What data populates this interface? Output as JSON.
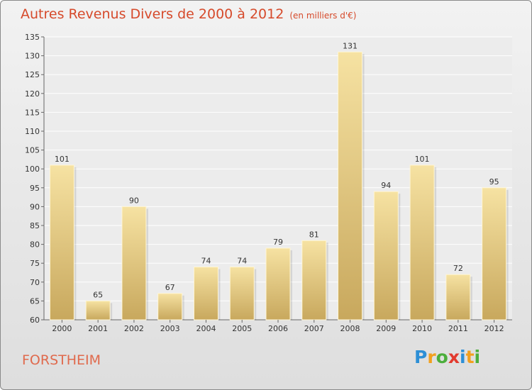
{
  "header": {
    "title": "Autres Revenus Divers de 2000 à 2012",
    "subtitle": "(en milliers d'€)"
  },
  "footer": {
    "commune": "FORSTHEIM",
    "logo_letters": [
      "P",
      "r",
      "o",
      "x",
      "i",
      "t",
      "i"
    ],
    "logo_colors": [
      "#2d8fd6",
      "#f2a01e",
      "#4cae3c",
      "#e23b2f",
      "#2d8fd6",
      "#f2a01e",
      "#4cae3c"
    ]
  },
  "colors": {
    "title": "#d64a2b",
    "bar": "#dcc37e",
    "bar_light": "#f4df9e",
    "bar_dark": "#c9a95e"
  },
  "chart_data": {
    "type": "bar",
    "categories": [
      "2000",
      "2001",
      "2002",
      "2003",
      "2004",
      "2005",
      "2006",
      "2007",
      "2008",
      "2009",
      "2010",
      "2011",
      "2012"
    ],
    "values": [
      101,
      65,
      90,
      67,
      74,
      74,
      79,
      81,
      131,
      94,
      101,
      72,
      95
    ],
    "ylim": [
      60,
      135
    ],
    "yticks": [
      60,
      65,
      70,
      75,
      80,
      85,
      90,
      95,
      100,
      105,
      110,
      115,
      120,
      125,
      130,
      135
    ],
    "grid": true
  }
}
